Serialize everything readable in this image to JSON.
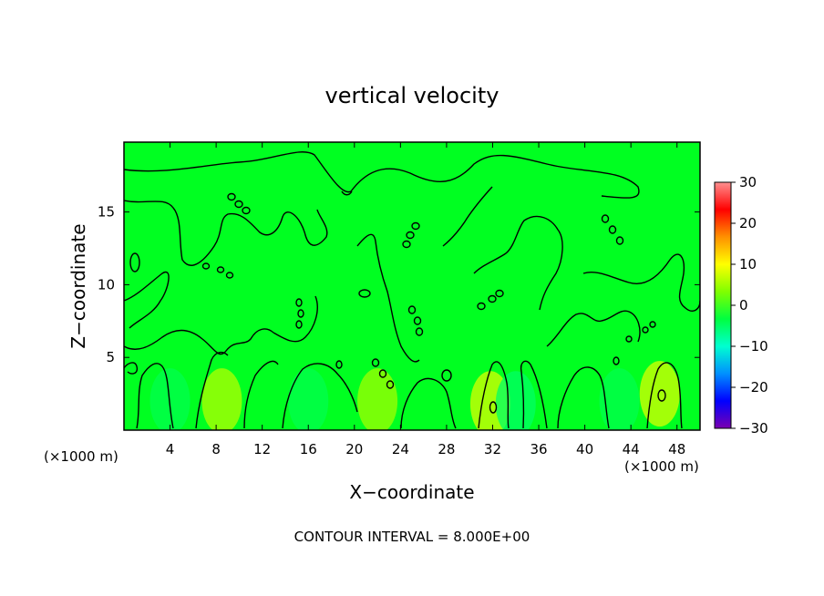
{
  "chart_data": {
    "type": "heatmap",
    "title": "vertical velocity",
    "xlabel": "X−coordinate",
    "ylabel": "Z−coordinate",
    "x_units_left": "(×1000 m)",
    "x_units_right": "(×1000 m)",
    "footer": "CONTOUR INTERVAL = 8.000E+00",
    "xlim": [
      0,
      50
    ],
    "ylim": [
      0,
      19.8
    ],
    "x_ticks": [
      4,
      8,
      12,
      16,
      20,
      24,
      28,
      32,
      36,
      40,
      44,
      48
    ],
    "y_ticks": [
      5,
      10,
      15
    ],
    "colorbar": {
      "min": -30,
      "max": 30,
      "ticks": [
        30,
        20,
        10,
        0,
        -10,
        -20,
        -30
      ],
      "tick_labels": [
        "30",
        "20",
        "10",
        "0",
        "−10",
        "−20",
        "−30"
      ],
      "colors": [
        "#7a00b0",
        "#0000ff",
        "#0090ff",
        "#00ffd0",
        "#00ff40",
        "#80ff00",
        "#ffff00",
        "#ff9000",
        "#ff0000",
        "#ff9090"
      ]
    },
    "background_level": 0,
    "contour_interval": 8,
    "features": [
      {
        "label": "updraft",
        "x": 8.5,
        "z": 2.0,
        "value": 6
      },
      {
        "label": "updraft",
        "x": 22,
        "z": 2.0,
        "value": 5
      },
      {
        "label": "updraft",
        "x": 31.8,
        "z": 1.8,
        "value": 8
      },
      {
        "label": "updraft",
        "x": 46.5,
        "z": 2.5,
        "value": 8
      },
      {
        "label": "downdraft",
        "x": 4,
        "z": 2.0,
        "value": -4
      },
      {
        "label": "downdraft",
        "x": 16,
        "z": 2.0,
        "value": -4
      },
      {
        "label": "downdraft",
        "x": 34,
        "z": 1.8,
        "value": -5
      },
      {
        "label": "downdraft",
        "x": 43,
        "z": 2.0,
        "value": -4
      }
    ]
  }
}
